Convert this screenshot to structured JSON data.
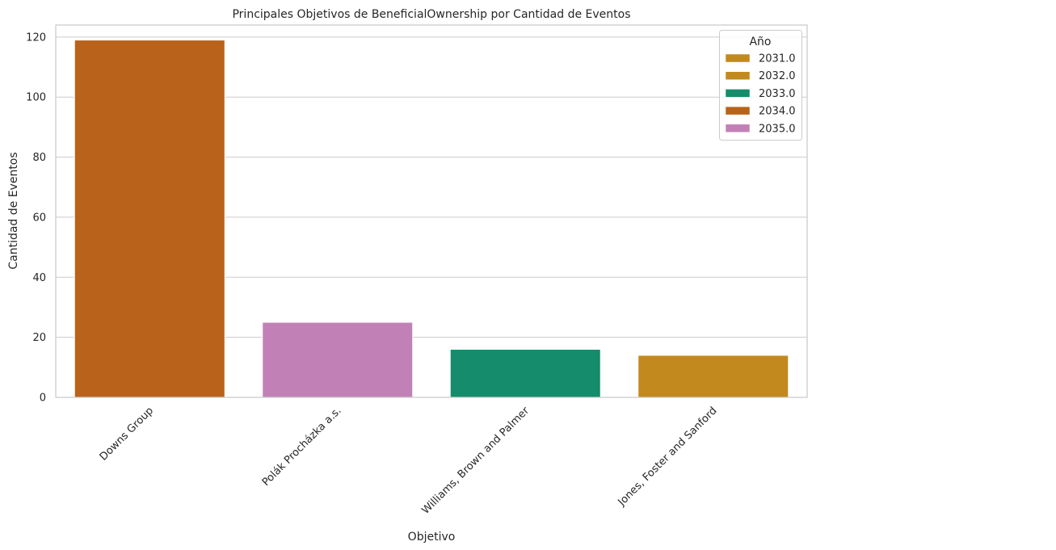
{
  "chart_data": {
    "type": "bar",
    "title": "Principales Objetivos de BeneficialOwnership  por Cantidad de Eventos",
    "xlabel": "Objetivo",
    "ylabel": "Cantidad de Eventos",
    "ylim": [
      0,
      124
    ],
    "yticks": [
      0,
      20,
      40,
      60,
      80,
      100,
      120
    ],
    "grid": "horizontal",
    "categories": [
      "Downs Group",
      "Polák Procházka a.s.",
      "Williams, Brown and Palmer",
      "Jones, Foster and Sanford"
    ],
    "bars": [
      {
        "category": "Downs Group",
        "value": 119,
        "year": "2034.0",
        "color": "#b9621b"
      },
      {
        "category": "Polák Procházka a.s.",
        "value": 25,
        "year": "2035.0",
        "color": "#c281b6"
      },
      {
        "category": "Williams, Brown and Palmer",
        "value": 16,
        "year": "2033.0",
        "color": "#158c6c"
      },
      {
        "category": "Jones, Foster and Sanford",
        "value": 14,
        "year": "2032.0",
        "color": "#c2891e"
      }
    ],
    "legend": {
      "title": "Año",
      "placement": "top-right",
      "entries": [
        {
          "label": "2031.0",
          "color": "#c2891e"
        },
        {
          "label": "2032.0",
          "color": "#c2891e"
        },
        {
          "label": "2033.0",
          "color": "#158c6c"
        },
        {
          "label": "2034.0",
          "color": "#b9621b"
        },
        {
          "label": "2035.0",
          "color": "#c281b6"
        }
      ]
    }
  }
}
